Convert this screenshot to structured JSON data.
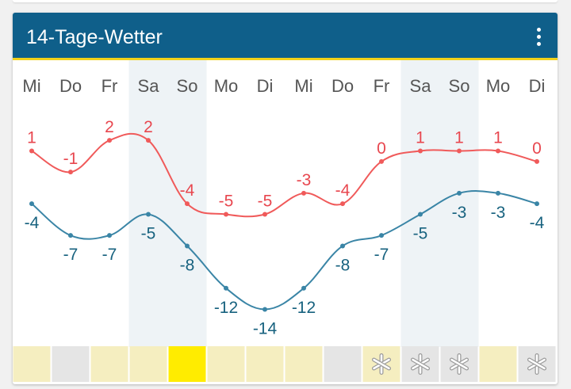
{
  "header": {
    "title": "14-Tage-Wetter",
    "menu_icon": "more-vert-icon"
  },
  "colors": {
    "header_bg": "#0f5f8a",
    "header_accent": "#f2d21a",
    "max_line": "#f05a5a",
    "max_label": "#e8474f",
    "min_line": "#3a85a6",
    "min_label": "#17627f",
    "weekend_band": "#eef3f6",
    "day_label": "#555555"
  },
  "chart_data": {
    "type": "line",
    "categories": [
      "Mi",
      "Do",
      "Fr",
      "Sa",
      "So",
      "Mo",
      "Di",
      "Mi",
      "Do",
      "Fr",
      "Sa",
      "So",
      "Mo",
      "Di"
    ],
    "weekend": [
      false,
      false,
      false,
      true,
      true,
      false,
      false,
      false,
      false,
      false,
      true,
      true,
      false,
      false
    ],
    "series": [
      {
        "key": "max",
        "values": [
          1,
          -1,
          2,
          2,
          -4,
          -5,
          -5,
          -3,
          -4,
          0,
          1,
          1,
          1,
          0
        ]
      },
      {
        "key": "min",
        "values": [
          -4,
          -7,
          -7,
          -5,
          -8,
          -12,
          -14,
          -12,
          -8,
          -7,
          -5,
          -3,
          -3,
          -4
        ]
      }
    ],
    "precipitation_tiles": [
      {
        "fill": "#f5eec0",
        "icon": ""
      },
      {
        "fill": "#e5e5e5",
        "icon": ""
      },
      {
        "fill": "#f5eec0",
        "icon": ""
      },
      {
        "fill": "#f5eec0",
        "icon": ""
      },
      {
        "fill": "#ffec00",
        "icon": ""
      },
      {
        "fill": "#f5eec0",
        "icon": ""
      },
      {
        "fill": "#f5eec0",
        "icon": ""
      },
      {
        "fill": "#f5eec0",
        "icon": ""
      },
      {
        "fill": "#e5e5e5",
        "icon": ""
      },
      {
        "fill": "#f5eec0",
        "icon": "snowflake-icon"
      },
      {
        "fill": "#e5e5e5",
        "icon": "snowflake-icon"
      },
      {
        "fill": "#e5e5e5",
        "icon": "snowflake-icon"
      },
      {
        "fill": "#f5eec0",
        "icon": ""
      },
      {
        "fill": "#e5e5e5",
        "icon": "snowflake-icon"
      }
    ]
  }
}
